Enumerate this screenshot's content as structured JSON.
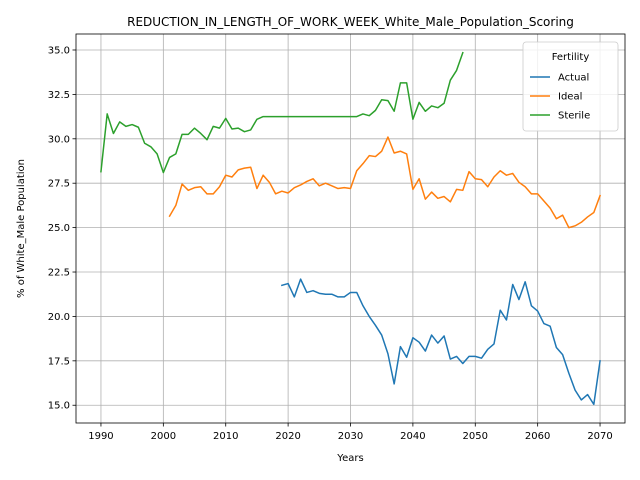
{
  "chart_data": {
    "type": "line",
    "title": "REDUCTION_IN_LENGTH_OF_WORK_WEEK_White_Male_Population_Scoring",
    "xlabel": "Years",
    "ylabel": "% of White_Male Population",
    "xlim": [
      1986,
      2074
    ],
    "ylim": [
      14.0,
      35.9
    ],
    "xticks": [
      1990,
      2000,
      2010,
      2020,
      2030,
      2040,
      2050,
      2060,
      2070
    ],
    "xtick_labels": [
      "1990",
      "2000",
      "2010",
      "2020",
      "2030",
      "2040",
      "2050",
      "2060",
      "2070"
    ],
    "yticks": [
      15.0,
      17.5,
      20.0,
      22.5,
      25.0,
      27.5,
      30.0,
      32.5,
      35.0
    ],
    "ytick_labels": [
      "15.0",
      "17.5",
      "20.0",
      "22.5",
      "25.0",
      "27.5",
      "30.0",
      "32.5",
      "35.0"
    ],
    "grid": true,
    "legend": {
      "title": "Fertility",
      "placement": "top-right"
    },
    "series": [
      {
        "name": "Actual",
        "color": "#1f77b4",
        "x": [
          2019,
          2020,
          2021,
          2022,
          2023,
          2024,
          2025,
          2026,
          2027,
          2028,
          2029,
          2030,
          2031,
          2032,
          2033,
          2034,
          2035,
          2036,
          2037,
          2038,
          2039,
          2040,
          2041,
          2042,
          2043,
          2044,
          2045,
          2046,
          2047,
          2048,
          2049,
          2050,
          2051,
          2052,
          2053,
          2054,
          2055,
          2056,
          2057,
          2058,
          2059,
          2060,
          2061,
          2062,
          2063,
          2064,
          2065,
          2066,
          2067,
          2068,
          2069,
          2070
        ],
        "y": [
          21.75,
          21.85,
          21.1,
          22.1,
          21.35,
          21.45,
          21.3,
          21.25,
          21.25,
          21.1,
          21.1,
          21.35,
          21.35,
          20.6,
          20.0,
          19.5,
          18.95,
          17.9,
          16.2,
          18.3,
          17.7,
          18.8,
          18.55,
          18.05,
          18.95,
          18.5,
          18.9,
          17.6,
          17.75,
          17.35,
          17.75,
          17.75,
          17.65,
          18.15,
          18.45,
          20.35,
          19.8,
          21.8,
          20.95,
          21.95,
          20.6,
          20.3,
          19.6,
          19.45,
          18.25,
          17.85,
          16.8,
          15.85,
          15.3,
          15.6,
          15.05,
          17.5
        ]
      },
      {
        "name": "Ideal",
        "color": "#ff7f0e",
        "x": [
          2001,
          2002,
          2003,
          2004,
          2005,
          2006,
          2007,
          2008,
          2009,
          2010,
          2011,
          2012,
          2013,
          2014,
          2015,
          2016,
          2017,
          2018,
          2019,
          2020,
          2021,
          2022,
          2023,
          2024,
          2025,
          2026,
          2027,
          2028,
          2029,
          2030,
          2031,
          2032,
          2033,
          2034,
          2035,
          2036,
          2037,
          2038,
          2039,
          2040,
          2041,
          2042,
          2043,
          2044,
          2045,
          2046,
          2047,
          2048,
          2049,
          2050,
          2051,
          2052,
          2053,
          2054,
          2055,
          2056,
          2057,
          2058,
          2059,
          2060,
          2061,
          2062,
          2063,
          2064,
          2065,
          2066,
          2067,
          2068,
          2069,
          2070
        ],
        "y": [
          25.65,
          26.25,
          27.45,
          27.1,
          27.25,
          27.3,
          26.9,
          26.9,
          27.3,
          27.95,
          27.85,
          28.25,
          28.35,
          28.4,
          27.2,
          27.95,
          27.55,
          26.9,
          27.05,
          26.95,
          27.25,
          27.4,
          27.6,
          27.75,
          27.35,
          27.5,
          27.35,
          27.2,
          27.25,
          27.2,
          28.2,
          28.6,
          29.05,
          29.0,
          29.3,
          30.1,
          29.2,
          29.3,
          29.15,
          27.15,
          27.75,
          26.6,
          27.0,
          26.65,
          26.75,
          26.45,
          27.15,
          27.1,
          28.15,
          27.75,
          27.7,
          27.3,
          27.85,
          28.2,
          27.95,
          28.05,
          27.55,
          27.3,
          26.9,
          26.9,
          26.5,
          26.1,
          25.5,
          25.7,
          25.0,
          25.1,
          25.3,
          25.6,
          25.85,
          26.8
        ]
      },
      {
        "name": "Sterile",
        "color": "#2ca02c",
        "x": [
          1990,
          1991,
          1992,
          1993,
          1994,
          1995,
          1996,
          1997,
          1998,
          1999,
          2000,
          2001,
          2002,
          2003,
          2004,
          2005,
          2006,
          2007,
          2008,
          2009,
          2010,
          2011,
          2012,
          2013,
          2014,
          2015,
          2016,
          2017,
          2018,
          2019,
          2020,
          2021,
          2022,
          2023,
          2024,
          2025,
          2026,
          2027,
          2028,
          2029,
          2030,
          2031,
          2032,
          2033,
          2034,
          2035,
          2036,
          2037,
          2038,
          2039,
          2040,
          2041,
          2042,
          2043,
          2044,
          2045,
          2046,
          2047,
          2048
        ],
        "y": [
          28.15,
          31.4,
          30.3,
          30.95,
          30.7,
          30.8,
          30.65,
          29.75,
          29.55,
          29.15,
          28.1,
          28.95,
          29.15,
          30.25,
          30.25,
          30.6,
          30.3,
          29.95,
          30.7,
          30.6,
          31.15,
          30.55,
          30.6,
          30.4,
          30.5,
          31.1,
          31.25,
          31.25,
          31.25,
          31.25,
          31.25,
          31.25,
          31.25,
          31.25,
          31.25,
          31.25,
          31.25,
          31.25,
          31.25,
          31.25,
          31.25,
          31.25,
          31.4,
          31.3,
          31.6,
          32.2,
          32.15,
          31.55,
          33.15,
          33.15,
          31.1,
          32.05,
          31.55,
          31.85,
          31.75,
          32.0,
          33.3,
          33.85,
          34.85
        ]
      }
    ]
  }
}
